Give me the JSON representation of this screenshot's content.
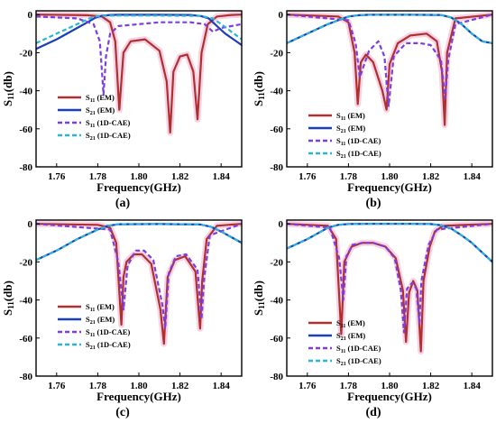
{
  "chart_data": [
    {
      "panel": "(a)",
      "type": "line",
      "xlabel": "Frequency(GHz)",
      "ylabel": "S11(db)",
      "xlim": [
        1.75,
        1.85
      ],
      "ylim": [
        -80,
        2
      ],
      "xticks": [
        1.76,
        1.78,
        1.8,
        1.82,
        1.84
      ],
      "yticks": [
        0,
        -20,
        -40,
        -60,
        -80
      ],
      "legend_position": "bottom-left",
      "series": [
        {
          "name": "S11 (EM)",
          "color": "#b03030",
          "style": "solid",
          "x": [
            1.75,
            1.775,
            1.782,
            1.786,
            1.7885,
            1.7905,
            1.7925,
            1.796,
            1.803,
            1.81,
            1.8135,
            1.8152,
            1.8168,
            1.82,
            1.8235,
            1.8265,
            1.8285,
            1.8305,
            1.8335,
            1.838,
            1.845,
            1.85
          ],
          "y": [
            0,
            -0.3,
            -1,
            -4,
            -14,
            -50,
            -20,
            -14,
            -13,
            -19,
            -35,
            -62,
            -30,
            -22,
            -21,
            -30,
            -55,
            -20,
            -5,
            -1,
            -0.2,
            0
          ]
        },
        {
          "name": "S21 (EM)",
          "color": "#1c3fb8",
          "style": "solid",
          "x": [
            1.75,
            1.76,
            1.77,
            1.775,
            1.779,
            1.782,
            1.786,
            1.79,
            1.81,
            1.825,
            1.83,
            1.834,
            1.838,
            1.842,
            1.846,
            1.85
          ],
          "y": [
            -18,
            -13,
            -7,
            -4,
            -1.5,
            -0.6,
            -0.2,
            -0.1,
            -0.1,
            -0.2,
            -0.7,
            -2,
            -6,
            -10,
            -13,
            -16
          ]
        },
        {
          "name": "S11 (1D-CAE)",
          "color": "#7b3fe0",
          "style": "dashed",
          "x": [
            1.75,
            1.77,
            1.778,
            1.781,
            1.7828,
            1.784,
            1.786,
            1.79,
            1.81,
            1.825,
            1.832,
            1.836,
            1.84,
            1.85
          ],
          "y": [
            -1,
            -2,
            -5,
            -14,
            -42,
            -22,
            -10,
            -6,
            -4,
            -4,
            -5,
            -9,
            -7,
            -5
          ]
        },
        {
          "name": "S21 (1D-CAE)",
          "color": "#29b5d6",
          "style": "dashed",
          "x": [
            1.75,
            1.76,
            1.77,
            1.776,
            1.779,
            1.782,
            1.79,
            1.81,
            1.83,
            1.836,
            1.84,
            1.845,
            1.85
          ],
          "y": [
            -15,
            -10,
            -5,
            -2,
            -1,
            -0.6,
            -0.5,
            -0.5,
            -0.7,
            -2,
            -5,
            -9,
            -13
          ]
        }
      ]
    },
    {
      "panel": "(b)",
      "type": "line",
      "xlabel": "Frequency(GHz)",
      "ylabel": "S11(db)",
      "xlim": [
        1.75,
        1.85
      ],
      "ylim": [
        -80,
        2
      ],
      "xticks": [
        1.76,
        1.78,
        1.8,
        1.82,
        1.84
      ],
      "yticks": [
        0,
        -20,
        -40,
        -60,
        -80
      ],
      "legend_position": "bottom-left",
      "series": [
        {
          "name": "S11 (EM)",
          "color": "#b03030",
          "style": "solid",
          "x": [
            1.75,
            1.775,
            1.78,
            1.783,
            1.7845,
            1.786,
            1.7885,
            1.792,
            1.7965,
            1.7985,
            1.8,
            1.804,
            1.81,
            1.818,
            1.823,
            1.8255,
            1.8268,
            1.828,
            1.832,
            1.85
          ],
          "y": [
            0,
            -1,
            -4,
            -20,
            -47,
            -25,
            -21,
            -25,
            -40,
            -50,
            -26,
            -15,
            -11,
            -10,
            -14,
            -30,
            -58,
            -20,
            -2,
            0
          ]
        },
        {
          "name": "S21 (EM)",
          "color": "#1c3fb8",
          "style": "solid",
          "x": [
            1.75,
            1.76,
            1.77,
            1.775,
            1.78,
            1.785,
            1.79,
            1.81,
            1.825,
            1.83,
            1.835,
            1.84,
            1.845,
            1.85
          ],
          "y": [
            -15,
            -10,
            -5,
            -3,
            -1,
            -0.3,
            -0.1,
            -0.1,
            -0.2,
            -1.5,
            -5,
            -10,
            -14,
            -15
          ]
        },
        {
          "name": "S11 (1D-CAE)",
          "color": "#7b3fe0",
          "style": "dashed",
          "x": [
            1.75,
            1.78,
            1.7835,
            1.7855,
            1.79,
            1.7945,
            1.7975,
            1.7995,
            1.802,
            1.808,
            1.815,
            1.82,
            1.825,
            1.827,
            1.8285,
            1.832,
            1.85
          ],
          "y": [
            0,
            -3,
            -15,
            -33,
            -19,
            -14,
            -22,
            -48,
            -22,
            -15,
            -15,
            -16,
            -24,
            -44,
            -24,
            -5,
            0
          ]
        },
        {
          "name": "S21 (1D-CAE)",
          "color": "#29b5d6",
          "style": "dashed",
          "x": [
            1.75,
            1.76,
            1.77,
            1.775,
            1.78,
            1.785,
            1.79,
            1.81,
            1.825,
            1.83,
            1.835,
            1.84,
            1.845,
            1.85
          ],
          "y": [
            -15,
            -10,
            -5,
            -3,
            -1,
            -0.3,
            -0.1,
            -0.1,
            -0.2,
            -1.5,
            -5,
            -10,
            -14,
            -15
          ]
        }
      ]
    },
    {
      "panel": "(c)",
      "type": "line",
      "xlabel": "Frequency(GHz)",
      "ylabel": "S11(db)",
      "xlim": [
        1.75,
        1.85
      ],
      "ylim": [
        -80,
        2
      ],
      "xticks": [
        1.76,
        1.78,
        1.8,
        1.82,
        1.84
      ],
      "yticks": [
        0,
        -20,
        -40,
        -60,
        -80
      ],
      "legend_position": "bottom-left",
      "series": [
        {
          "name": "S11 (EM)",
          "color": "#b03030",
          "style": "solid",
          "x": [
            1.75,
            1.78,
            1.786,
            1.789,
            1.7915,
            1.7925,
            1.794,
            1.7975,
            1.8015,
            1.806,
            1.8105,
            1.8122,
            1.814,
            1.8175,
            1.8225,
            1.8275,
            1.8298,
            1.8308,
            1.833,
            1.838,
            1.85
          ],
          "y": [
            0,
            -0.5,
            -2,
            -10,
            -53,
            -28,
            -20,
            -16,
            -16,
            -21,
            -45,
            -63,
            -28,
            -19,
            -17,
            -25,
            -55,
            -30,
            -8,
            -1,
            0
          ]
        },
        {
          "name": "S21 (EM)",
          "color": "#1c3fb8",
          "style": "solid",
          "x": [
            1.75,
            1.76,
            1.77,
            1.78,
            1.785,
            1.79,
            1.81,
            1.83,
            1.835,
            1.84,
            1.845,
            1.85
          ],
          "y": [
            -19,
            -14,
            -8,
            -3,
            -1,
            -0.2,
            -0.1,
            -0.3,
            -1.5,
            -4,
            -7,
            -10
          ]
        },
        {
          "name": "S11 (1D-CAE)",
          "color": "#7b3fe0",
          "style": "dashed",
          "x": [
            1.75,
            1.786,
            1.79,
            1.7925,
            1.7945,
            1.7985,
            1.8025,
            1.807,
            1.8115,
            1.8128,
            1.8145,
            1.818,
            1.823,
            1.8285,
            1.8305,
            1.8318,
            1.8345,
            1.85
          ],
          "y": [
            0,
            -3,
            -20,
            -45,
            -22,
            -14,
            -14,
            -19,
            -43,
            -55,
            -26,
            -17,
            -16,
            -24,
            -50,
            -28,
            -6,
            0
          ]
        },
        {
          "name": "S21 (1D-CAE)",
          "color": "#29b5d6",
          "style": "dashed",
          "x": [
            1.75,
            1.76,
            1.77,
            1.78,
            1.785,
            1.79,
            1.81,
            1.83,
            1.835,
            1.84,
            1.845,
            1.85
          ],
          "y": [
            -19,
            -14,
            -8,
            -3,
            -1,
            -0.2,
            -0.1,
            -0.3,
            -1.5,
            -4,
            -7,
            -10
          ]
        }
      ]
    },
    {
      "panel": "(d)",
      "type": "line",
      "xlabel": "Frequency(GHz)",
      "ylabel": "S11(db)",
      "xlim": [
        1.75,
        1.85
      ],
      "ylim": [
        -80,
        2
      ],
      "xticks": [
        1.76,
        1.78,
        1.8,
        1.82,
        1.84
      ],
      "yticks": [
        0,
        -20,
        -40,
        -60,
        -80
      ],
      "legend_position": "bottom-left",
      "series": [
        {
          "name": "S11 (EM)",
          "color": "#b03030",
          "style": "solid",
          "x": [
            1.75,
            1.77,
            1.774,
            1.7765,
            1.778,
            1.7815,
            1.7865,
            1.792,
            1.798,
            1.803,
            1.8065,
            1.808,
            1.8095,
            1.8115,
            1.8135,
            1.8152,
            1.8165,
            1.8195,
            1.822,
            1.826,
            1.85
          ],
          "y": [
            0,
            -1,
            -8,
            -58,
            -20,
            -12,
            -10,
            -10,
            -12,
            -18,
            -35,
            -62,
            -36,
            -30,
            -35,
            -67,
            -30,
            -12,
            -4,
            -1,
            0
          ]
        },
        {
          "name": "S21 (EM)",
          "color": "#1c3fb8",
          "style": "solid",
          "x": [
            1.75,
            1.76,
            1.765,
            1.77,
            1.775,
            1.78,
            1.79,
            1.81,
            1.82,
            1.825,
            1.83,
            1.835,
            1.84,
            1.845,
            1.85
          ],
          "y": [
            -13,
            -8,
            -5,
            -2,
            -0.5,
            -0.1,
            0,
            0,
            -0.1,
            -0.7,
            -2.5,
            -6,
            -10,
            -15,
            -20
          ]
        },
        {
          "name": "S11 (1D-CAE)",
          "color": "#7b3fe0",
          "style": "dashed",
          "x": [
            1.75,
            1.771,
            1.7755,
            1.7775,
            1.779,
            1.782,
            1.787,
            1.792,
            1.798,
            1.8025,
            1.8055,
            1.807,
            1.8085,
            1.811,
            1.813,
            1.8145,
            1.8155,
            1.819,
            1.823,
            1.85
          ],
          "y": [
            0,
            -2,
            -18,
            -40,
            -17,
            -11,
            -10,
            -10,
            -12,
            -18,
            -35,
            -57,
            -34,
            -31,
            -34,
            -52,
            -30,
            -11,
            -3,
            0
          ]
        },
        {
          "name": "S21 (1D-CAE)",
          "color": "#29b5d6",
          "style": "dashed",
          "x": [
            1.75,
            1.76,
            1.765,
            1.77,
            1.775,
            1.78,
            1.79,
            1.81,
            1.82,
            1.825,
            1.83,
            1.835,
            1.84,
            1.845,
            1.85
          ],
          "y": [
            -13,
            -8,
            -5,
            -2,
            -0.5,
            -0.1,
            0,
            0,
            -0.1,
            -0.7,
            -2.5,
            -6,
            -10,
            -15,
            -20
          ]
        }
      ]
    }
  ]
}
